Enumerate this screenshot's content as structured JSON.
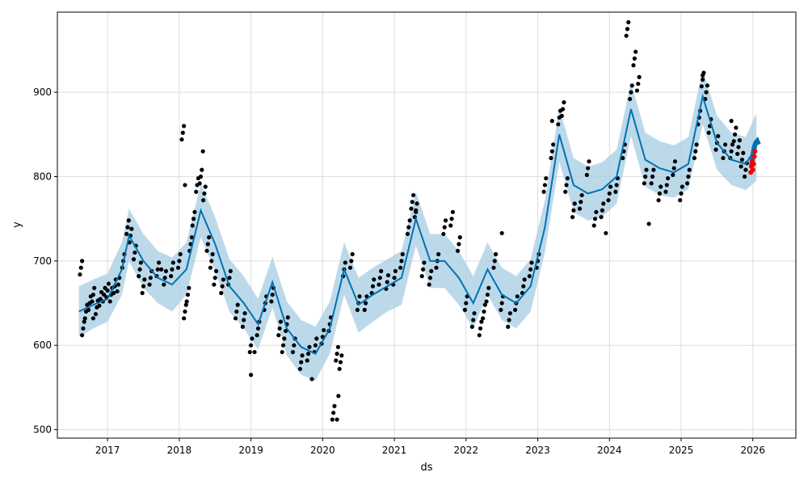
{
  "chart_data": {
    "type": "line",
    "title": "",
    "xlabel": "ds",
    "ylabel": "y",
    "xlim": [
      2016.3,
      2026.6
    ],
    "ylim": [
      490,
      995
    ],
    "x_ticks": [
      2017,
      2018,
      2019,
      2020,
      2021,
      2022,
      2023,
      2024,
      2025,
      2026
    ],
    "x_tick_labels": [
      "2017",
      "2018",
      "2019",
      "2020",
      "2021",
      "2022",
      "2023",
      "2024",
      "2025",
      "2026"
    ],
    "y_ticks": [
      500,
      600,
      700,
      800,
      900
    ],
    "y_tick_labels": [
      "500",
      "600",
      "700",
      "800",
      "900"
    ],
    "grid": true,
    "legend": "none",
    "colors": {
      "observed": "#000000",
      "forecast_line": "#0072B2",
      "uncertainty_band": "#a6cce3",
      "highlight_points": "#ff0000"
    },
    "series": [
      {
        "kind": "forecast",
        "x": [
          2016.6,
          2016.8,
          2017.0,
          2017.2,
          2017.3,
          2017.5,
          2017.7,
          2017.9,
          2018.1,
          2018.3,
          2018.5,
          2018.7,
          2018.9,
          2019.1,
          2019.3,
          2019.5,
          2019.7,
          2019.9,
          2020.1,
          2020.3,
          2020.5,
          2020.7,
          2020.9,
          2021.1,
          2021.3,
          2021.5,
          2021.7,
          2021.9,
          2022.1,
          2022.3,
          2022.5,
          2022.7,
          2022.9,
          2023.1,
          2023.3,
          2023.5,
          2023.7,
          2023.9,
          2024.1,
          2024.3,
          2024.5,
          2024.7,
          2024.9,
          2025.1,
          2025.3,
          2025.5,
          2025.7,
          2025.9,
          2026.05
        ],
        "y": [
          640,
          648,
          655,
          690,
          730,
          700,
          680,
          672,
          690,
          760,
          720,
          670,
          650,
          625,
          675,
          620,
          598,
          590,
          620,
          690,
          648,
          660,
          670,
          680,
          750,
          700,
          700,
          680,
          650,
          690,
          660,
          650,
          670,
          740,
          850,
          790,
          780,
          785,
          800,
          880,
          820,
          810,
          805,
          815,
          895,
          840,
          820,
          815,
          835
        ],
        "lower": [
          610,
          620,
          628,
          660,
          700,
          668,
          650,
          640,
          660,
          728,
          688,
          640,
          620,
          595,
          645,
          588,
          565,
          558,
          590,
          660,
          615,
          628,
          640,
          648,
          718,
          668,
          668,
          648,
          620,
          660,
          630,
          620,
          640,
          710,
          818,
          758,
          748,
          752,
          768,
          848,
          788,
          778,
          775,
          785,
          862,
          808,
          790,
          784,
          795
        ],
        "upper": [
          670,
          678,
          685,
          722,
          762,
          732,
          712,
          704,
          722,
          792,
          752,
          702,
          682,
          655,
          705,
          652,
          630,
          622,
          652,
          722,
          680,
          692,
          702,
          712,
          782,
          732,
          732,
          712,
          682,
          722,
          692,
          682,
          702,
          772,
          882,
          822,
          812,
          817,
          832,
          912,
          852,
          842,
          837,
          847,
          927,
          872,
          852,
          847,
          875
        ]
      },
      {
        "kind": "observed",
        "x": [
          2016.63,
          2016.66,
          2016.7,
          2016.75,
          2016.8,
          2016.85,
          2016.9,
          2016.95,
          2017.0,
          2017.05,
          2017.1,
          2017.15,
          2017.22,
          2017.28,
          2017.32,
          2017.38,
          2017.45,
          2017.5,
          2017.6,
          2017.7,
          2017.8,
          2017.9,
          2018.0,
          2018.05,
          2018.08,
          2018.12,
          2018.16,
          2018.2,
          2018.25,
          2018.3,
          2018.35,
          2018.4,
          2018.45,
          2018.5,
          2018.6,
          2018.7,
          2018.8,
          2018.9,
          2019.0,
          2019.1,
          2019.2,
          2019.3,
          2019.4,
          2019.45,
          2019.5,
          2019.6,
          2019.7,
          2019.8,
          2019.9,
          2020.0,
          2020.1,
          2020.15,
          2020.2,
          2020.25,
          2020.3,
          2020.4,
          2020.5,
          2020.6,
          2020.7,
          2020.8,
          2020.9,
          2021.0,
          2021.1,
          2021.2,
          2021.25,
          2021.3,
          2021.4,
          2021.5,
          2021.6,
          2021.7,
          2021.8,
          2021.9,
          2022.0,
          2022.1,
          2022.2,
          2022.25,
          2022.3,
          2022.4,
          2022.5,
          2022.6,
          2022.7,
          2022.8,
          2022.9,
          2023.0,
          2023.1,
          2023.2,
          2023.3,
          2023.35,
          2023.4,
          2023.5,
          2023.6,
          2023.7,
          2023.8,
          2023.9,
          2024.0,
          2024.1,
          2024.2,
          2024.25,
          2024.3,
          2024.35,
          2024.4,
          2024.5,
          2024.6,
          2024.7,
          2024.8,
          2024.9,
          2025.0,
          2025.1,
          2025.2,
          2025.25,
          2025.3,
          2025.35,
          2025.4,
          2025.5,
          2025.6,
          2025.7,
          2025.75,
          2025.8,
          2025.85,
          2025.9
        ],
        "y": [
          692,
          620,
          640,
          650,
          660,
          645,
          655,
          660,
          665,
          660,
          670,
          672,
          700,
          740,
          730,
          710,
          690,
          670,
          680,
          690,
          680,
          690,
          700,
          852,
          640,
          660,
          720,
          750,
          790,
          800,
          780,
          720,
          700,
          680,
          670,
          680,
          640,
          630,
          600,
          620,
          650,
          660,
          620,
          600,
          625,
          600,
          580,
          590,
          600,
          610,
          625,
          520,
          590,
          580,
          690,
          700,
          650,
          650,
          670,
          680,
          675,
          680,
          700,
          740,
          770,
          760,
          690,
          680,
          700,
          740,
          750,
          720,
          650,
          630,
          620,
          640,
          660,
          700,
          650,
          630,
          650,
          670,
          690,
          700,
          790,
          830,
          870,
          880,
          790,
          760,
          770,
          810,
          750,
          760,
          780,
          790,
          830,
          975,
          900,
          940,
          910,
          800,
          800,
          780,
          790,
          810,
          780,
          800,
          830,
          870,
          915,
          900,
          860,
          840,
          830,
          830,
          850,
          835,
          820,
          808
        ],
        "extra_outliers": [
          [
            2016.8,
            632
          ],
          [
            2017.75,
            690
          ],
          [
            2018.08,
            790
          ],
          [
            2018.33,
            830
          ],
          [
            2019.0,
            565
          ],
          [
            2019.05,
            592
          ],
          [
            2019.85,
            560
          ],
          [
            2020.2,
            512
          ],
          [
            2020.22,
            540
          ],
          [
            2021.3,
            758
          ],
          [
            2022.5,
            733
          ],
          [
            2023.2,
            866
          ],
          [
            2023.95,
            733
          ],
          [
            2024.55,
            744
          ],
          [
            2025.3,
            920
          ],
          [
            2025.7,
            866
          ]
        ]
      },
      {
        "kind": "highlight",
        "x": [
          2025.97,
          2025.98,
          2025.99,
          2026.0,
          2026.01,
          2026.02,
          2026.03
        ],
        "y": [
          805,
          812,
          818,
          808,
          815,
          824,
          830
        ]
      },
      {
        "kind": "forecast_tail",
        "x": [
          2025.98,
          2026.0,
          2026.02,
          2026.04,
          2026.06,
          2026.08
        ],
        "y": [
          812,
          825,
          835,
          840,
          842,
          838
        ]
      }
    ]
  }
}
